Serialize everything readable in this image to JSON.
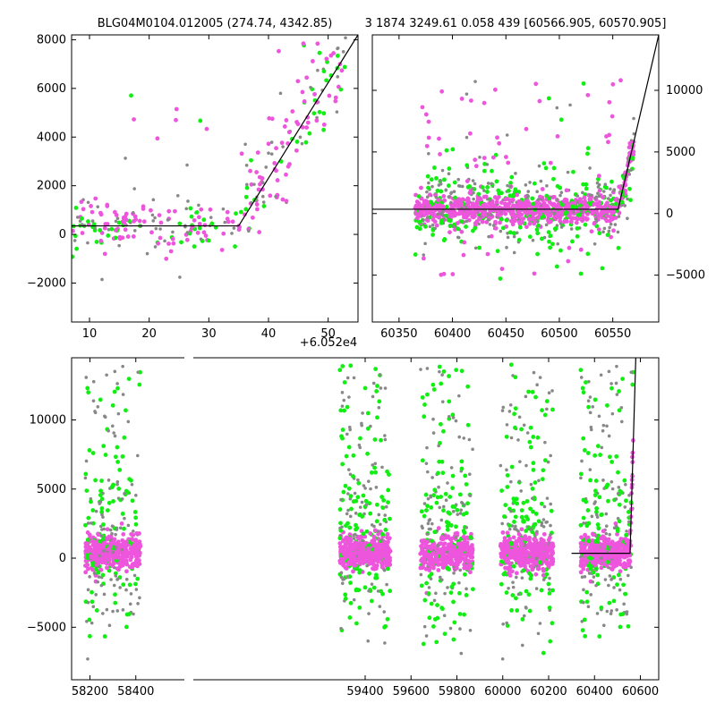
{
  "title_left": "BLG04M0104.012005 (274.74, 4342.85)",
  "title_right": "3 1874 3249.61 0.058 439 [60566.905, 60570.905]",
  "offset_label": "+6.052e4",
  "colors": {
    "magenta": "#ee55dd",
    "green": "#11ee11",
    "gray": "#888888",
    "line": "#000000"
  },
  "chart_data": [
    {
      "id": "zoom",
      "type": "scatter",
      "xlim": [
        7,
        55
      ],
      "ylim": [
        -3600,
        8200
      ],
      "xticks": [
        10,
        20,
        30,
        40,
        50
      ],
      "yticks": [
        -2000,
        0,
        2000,
        4000,
        6000,
        8000
      ],
      "x_offset_label": "+6.052e4",
      "model_line": [
        [
          7,
          350
        ],
        [
          35,
          350
        ],
        [
          55,
          8200
        ]
      ]
    },
    {
      "id": "last-season",
      "type": "scatter",
      "xlim": [
        60325,
        60593
      ],
      "ylim": [
        -8800,
        14500
      ],
      "xticks": [
        60350,
        60400,
        60450,
        60500,
        60550
      ],
      "yticks": [
        -5000,
        0,
        5000,
        10000
      ],
      "model_line": [
        [
          60325,
          350
        ],
        [
          60555,
          350
        ],
        [
          60593,
          14500
        ]
      ]
    },
    {
      "id": "full-lightcurve",
      "type": "scatter",
      "xlim": [
        58120,
        60680
      ],
      "ylim": [
        -8800,
        14500
      ],
      "xticks": [
        58200,
        58400,
        59400,
        59600,
        59800,
        60000,
        60200,
        60400,
        60600
      ],
      "yticks": [
        -5000,
        0,
        5000,
        10000
      ],
      "seasons": [
        [
          58180,
          58420
        ],
        [
          59290,
          59510
        ],
        [
          59640,
          59870
        ],
        [
          59990,
          60220
        ],
        [
          60340,
          60570
        ]
      ],
      "model_line": [
        [
          60300,
          350
        ],
        [
          60555,
          350
        ],
        [
          60580,
          14500
        ]
      ]
    }
  ]
}
